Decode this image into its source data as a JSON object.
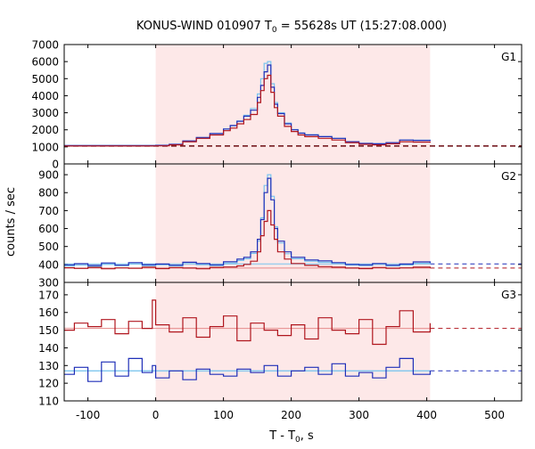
{
  "chart_data": {
    "type": "line",
    "title_main": "KONUS-WIND 010907 T",
    "title_sub": "0",
    "title_rest": " = 55628s UT (15:27:08.000)",
    "xlabel_main": "T - T",
    "xlabel_sub": "0",
    "xlabel_rest": ", s",
    "ylabel": "counts / sec",
    "xlim": [
      -135,
      540
    ],
    "xticks": [
      -100,
      0,
      100,
      200,
      300,
      400,
      500
    ],
    "xtick_labels": [
      "-100",
      "0",
      "100",
      "200",
      "300",
      "400",
      "500"
    ],
    "shaded_interval": [
      0,
      405
    ],
    "colors": {
      "shade": "#fde8e8",
      "red": "#b0161e",
      "blue": "#1f2fb8",
      "cyan": "#79c4ee",
      "darkred": "#6b0a10"
    },
    "panels": [
      {
        "label": "G1",
        "ylim": [
          0,
          7000
        ],
        "yticks": [
          0,
          1000,
          2000,
          3000,
          4000,
          5000,
          6000,
          7000
        ],
        "ytick_labels": [
          "0",
          "1000",
          "2000",
          "3000",
          "4000",
          "5000",
          "6000",
          "7000"
        ],
        "background_level": 1050,
        "series": [
          {
            "name": "red",
            "x": [
              -135,
              0,
              20,
              40,
              60,
              80,
              100,
              110,
              120,
              130,
              140,
              150,
              155,
              160,
              165,
              170,
              175,
              180,
              190,
              200,
              210,
              220,
              240,
              260,
              280,
              300,
              320,
              340,
              360,
              380,
              405
            ],
            "y": [
              1050,
              1060,
              1120,
              1300,
              1500,
              1700,
              1950,
              2100,
              2350,
              2600,
              2900,
              3600,
              4300,
              5000,
              5200,
              4200,
              3300,
              2800,
              2200,
              1900,
              1700,
              1600,
              1500,
              1400,
              1250,
              1150,
              1120,
              1180,
              1300,
              1280,
              1250
            ]
          },
          {
            "name": "blue",
            "x": [
              -135,
              0,
              20,
              40,
              60,
              80,
              100,
              110,
              120,
              130,
              140,
              150,
              155,
              160,
              165,
              170,
              175,
              180,
              190,
              200,
              210,
              220,
              240,
              260,
              280,
              300,
              320,
              340,
              360,
              380,
              405
            ],
            "y": [
              1080,
              1090,
              1150,
              1350,
              1550,
              1780,
              2050,
              2250,
              2500,
              2800,
              3150,
              3900,
              4600,
              5400,
              5800,
              4500,
              3500,
              2950,
              2350,
              2000,
              1800,
              1700,
              1600,
              1500,
              1300,
              1200,
              1180,
              1250,
              1400,
              1380,
              1350
            ]
          },
          {
            "name": "cyan",
            "x": [
              -135,
              0,
              20,
              40,
              60,
              80,
              100,
              110,
              120,
              130,
              140,
              150,
              155,
              160,
              165,
              170,
              175,
              180,
              190,
              200,
              210,
              220,
              240,
              260,
              280,
              300,
              320,
              340,
              360,
              380,
              405
            ],
            "y": [
              1070,
              1080,
              1140,
              1340,
              1540,
              1770,
              2040,
              2240,
              2520,
              2850,
              3250,
              4100,
              5000,
              5900,
              6000,
              4700,
              3600,
              3000,
              2400,
              2020,
              1820,
              1720,
              1610,
              1500,
              1300,
              1200,
              1180,
              1250,
              1400,
              1390,
              1360
            ]
          }
        ]
      },
      {
        "label": "G2",
        "ylim": [
          300,
          960
        ],
        "yticks": [
          300,
          400,
          500,
          600,
          700,
          800,
          900
        ],
        "ytick_labels": [
          "300",
          "400",
          "500",
          "600",
          "700",
          "800",
          "900"
        ],
        "background_levels": [
          380,
          403
        ],
        "series": [
          {
            "name": "red",
            "x": [
              -135,
              -120,
              -100,
              -80,
              -60,
              -40,
              -20,
              0,
              20,
              40,
              60,
              80,
              100,
              120,
              130,
              140,
              150,
              155,
              160,
              165,
              170,
              175,
              180,
              190,
              200,
              220,
              240,
              260,
              280,
              300,
              320,
              340,
              360,
              380,
              405
            ],
            "y": [
              382,
              378,
              384,
              376,
              381,
              379,
              385,
              377,
              383,
              380,
              376,
              384,
              386,
              392,
              400,
              418,
              470,
              560,
              640,
              700,
              620,
              540,
              470,
              430,
              405,
              395,
              388,
              385,
              380,
              377,
              383,
              379,
              381,
              385,
              380
            ]
          },
          {
            "name": "blue",
            "x": [
              -135,
              -120,
              -100,
              -80,
              -60,
              -40,
              -20,
              0,
              20,
              40,
              60,
              80,
              100,
              120,
              130,
              140,
              150,
              155,
              160,
              165,
              170,
              175,
              180,
              190,
              200,
              220,
              240,
              260,
              280,
              300,
              320,
              340,
              360,
              380,
              405
            ],
            "y": [
              398,
              404,
              395,
              408,
              396,
              410,
              399,
              402,
              396,
              412,
              405,
              398,
              415,
              430,
              440,
              470,
              540,
              650,
              800,
              880,
              760,
              600,
              530,
              470,
              440,
              425,
              420,
              410,
              400,
              398,
              405,
              396,
              402,
              414,
              408
            ]
          },
          {
            "name": "cyan",
            "x": [
              -135,
              -120,
              -100,
              -80,
              -60,
              -40,
              -20,
              0,
              20,
              40,
              60,
              80,
              100,
              120,
              130,
              140,
              150,
              155,
              160,
              165,
              170,
              175,
              180,
              190,
              200,
              220,
              240,
              260,
              280,
              300,
              320,
              340,
              360,
              380,
              405
            ],
            "y": [
              392,
              396,
              390,
              400,
              394,
              402,
              393,
              398,
              392,
              404,
              399,
              394,
              408,
              422,
              432,
              462,
              530,
              660,
              840,
              900,
              780,
              610,
              520,
              460,
              432,
              418,
              412,
              404,
              396,
              394,
              400,
              392,
              397,
              406,
              402
            ]
          }
        ]
      },
      {
        "label": "G3",
        "ylim": [
          110,
          177
        ],
        "yticks": [
          110,
          120,
          130,
          140,
          150,
          160,
          170
        ],
        "ytick_labels": [
          "110",
          "120",
          "130",
          "140",
          "150",
          "160",
          "170"
        ],
        "background_levels": [
          151,
          127
        ],
        "series": [
          {
            "name": "red",
            "x": [
              -135,
              -120,
              -100,
              -80,
              -60,
              -40,
              -20,
              -5,
              0,
              20,
              40,
              60,
              80,
              100,
              120,
              140,
              160,
              180,
              200,
              220,
              240,
              260,
              280,
              300,
              320,
              340,
              360,
              380,
              405
            ],
            "y": [
              150,
              154,
              152,
              156,
              148,
              155,
              151,
              167,
              153,
              149,
              157,
              146,
              152,
              158,
              144,
              154,
              150,
              147,
              153,
              145,
              157,
              150,
              148,
              156,
              142,
              152,
              161,
              149,
              154
            ]
          },
          {
            "name": "blue",
            "x": [
              -135,
              -120,
              -100,
              -80,
              -60,
              -40,
              -20,
              -5,
              0,
              20,
              40,
              60,
              80,
              100,
              120,
              140,
              160,
              180,
              200,
              220,
              240,
              260,
              280,
              300,
              320,
              340,
              360,
              380,
              405
            ],
            "y": [
              125,
              129,
              121,
              132,
              124,
              134,
              126,
              130,
              123,
              127,
              122,
              128,
              125,
              124,
              128,
              126,
              130,
              124,
              127,
              129,
              125,
              131,
              124,
              126,
              123,
              129,
              134,
              125,
              127
            ]
          },
          {
            "name": "cyan",
            "x": [
              -135,
              405
            ],
            "y": [
              127,
              127
            ]
          }
        ]
      }
    ]
  }
}
